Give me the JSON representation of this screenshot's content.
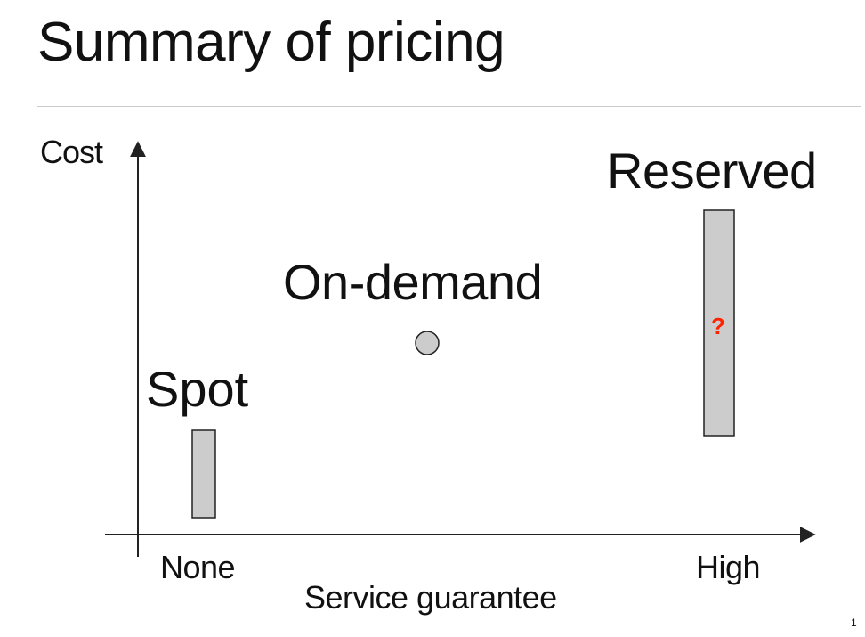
{
  "slide": {
    "title": "Summary of pricing",
    "page_number": "1"
  },
  "diagram": {
    "y_axis_label": "Cost",
    "x_axis_label": "Service guarantee",
    "x_tick_low": "None",
    "x_tick_high": "High",
    "items": [
      {
        "label": "Spot",
        "shape": "bar"
      },
      {
        "label": "On-demand",
        "shape": "circle"
      },
      {
        "label": "Reserved",
        "shape": "bar",
        "annotation": "?"
      }
    ]
  },
  "colors": {
    "fill": "#cccccc",
    "stroke": "#222222",
    "annotation": "#ff2200",
    "rule": "#cccccc"
  }
}
